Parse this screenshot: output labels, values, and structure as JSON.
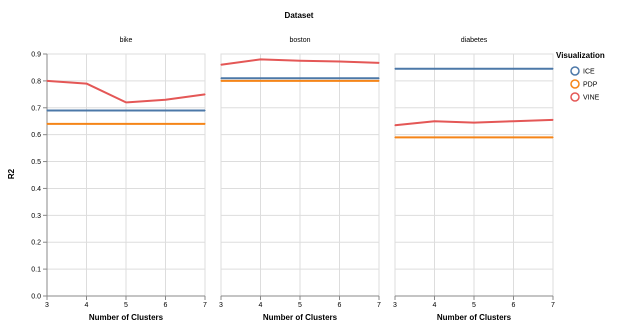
{
  "chart_data": {
    "type": "line",
    "column_title": "Dataset",
    "facets": [
      {
        "name": "bike",
        "x": [
          3,
          4,
          5,
          6,
          7
        ],
        "series": [
          {
            "name": "ICE",
            "values": [
              0.69,
              0.69,
              0.69,
              0.69,
              0.69
            ]
          },
          {
            "name": "PDP",
            "values": [
              0.64,
              0.64,
              0.64,
              0.64,
              0.64
            ]
          },
          {
            "name": "VINE",
            "values": [
              0.8,
              0.79,
              0.72,
              0.73,
              0.75
            ]
          }
        ]
      },
      {
        "name": "boston",
        "x": [
          3,
          4,
          5,
          6,
          7
        ],
        "series": [
          {
            "name": "ICE",
            "values": [
              0.81,
              0.81,
              0.81,
              0.81,
              0.81
            ]
          },
          {
            "name": "PDP",
            "values": [
              0.8,
              0.8,
              0.8,
              0.8,
              0.8
            ]
          },
          {
            "name": "VINE",
            "values": [
              0.86,
              0.88,
              0.875,
              0.872,
              0.867
            ]
          }
        ]
      },
      {
        "name": "diabetes",
        "x": [
          3,
          4,
          5,
          6,
          7
        ],
        "series": [
          {
            "name": "ICE",
            "values": [
              0.845,
              0.845,
              0.845,
              0.845,
              0.845
            ]
          },
          {
            "name": "PDP",
            "values": [
              0.59,
              0.59,
              0.59,
              0.59,
              0.59
            ]
          },
          {
            "name": "VINE",
            "values": [
              0.635,
              0.65,
              0.645,
              0.65,
              0.655
            ]
          }
        ]
      }
    ],
    "xlabel": "Number of Clusters",
    "ylabel": "R2",
    "xlim": [
      3,
      7
    ],
    "ylim": [
      0,
      0.9
    ],
    "x_ticks": [
      3,
      4,
      5,
      6,
      7
    ],
    "y_ticks": [
      "0.0",
      "0.1",
      "0.2",
      "0.3",
      "0.4",
      "0.5",
      "0.6",
      "0.7",
      "0.8",
      "0.9"
    ],
    "grid": true,
    "legend": {
      "title": "Visualization",
      "position": "right",
      "items": [
        "ICE",
        "PDP",
        "VINE"
      ]
    },
    "colors": {
      "ICE": "#4c78a8",
      "PDP": "#f58518",
      "VINE": "#e45756"
    }
  }
}
